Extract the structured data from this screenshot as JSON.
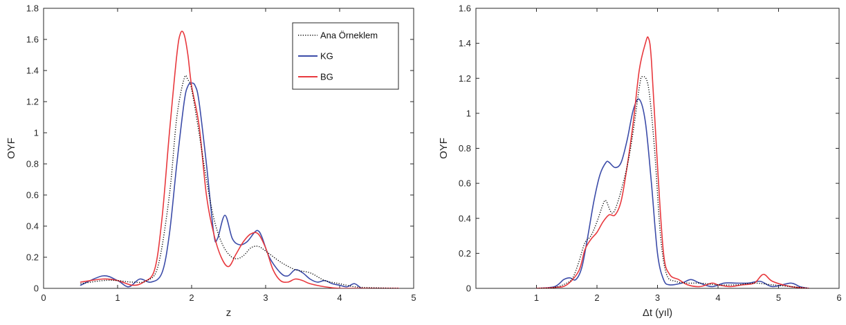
{
  "chart_data": [
    {
      "type": "line",
      "title": "",
      "xlabel": "z",
      "ylabel": "OYF",
      "xlim": [
        0,
        5
      ],
      "ylim": [
        0,
        1.8
      ],
      "x_ticks": [
        "0",
        "1",
        "2",
        "3",
        "4",
        "5"
      ],
      "y_ticks": [
        "0",
        "0.2",
        "0.4",
        "0.6",
        "0.8",
        "1",
        "1.2",
        "1.4",
        "1.6",
        "1.8"
      ],
      "grid": false,
      "legend_position": "top-right",
      "series": [
        {
          "name": "Ana Örneklem",
          "color": "#000000",
          "style": "dotted",
          "x": [
            0.5,
            0.8,
            1.0,
            1.2,
            1.4,
            1.55,
            1.7,
            1.8,
            1.9,
            1.95,
            2.0,
            2.1,
            2.2,
            2.3,
            2.4,
            2.5,
            2.6,
            2.7,
            2.8,
            2.9,
            3.0,
            3.2,
            3.4,
            3.6,
            3.8,
            4.0,
            4.2,
            4.4,
            4.6,
            4.8
          ],
          "y": [
            0.03,
            0.05,
            0.05,
            0.04,
            0.05,
            0.15,
            0.6,
            1.1,
            1.35,
            1.34,
            1.28,
            1.0,
            0.7,
            0.45,
            0.3,
            0.22,
            0.19,
            0.21,
            0.26,
            0.27,
            0.24,
            0.17,
            0.12,
            0.1,
            0.05,
            0.03,
            0.01,
            0.005,
            0.002,
            0.0
          ]
        },
        {
          "name": "KG",
          "color": "#3b4ba8",
          "style": "solid",
          "x": [
            0.5,
            0.8,
            1.0,
            1.15,
            1.3,
            1.45,
            1.6,
            1.7,
            1.8,
            1.9,
            1.95,
            2.0,
            2.05,
            2.1,
            2.2,
            2.3,
            2.35,
            2.45,
            2.55,
            2.65,
            2.75,
            2.85,
            2.9,
            2.95,
            3.05,
            3.2,
            3.3,
            3.4,
            3.5,
            3.6,
            3.7,
            3.8,
            3.9,
            4.0,
            4.1,
            4.2,
            4.3,
            4.4,
            4.6,
            4.8
          ],
          "y": [
            0.02,
            0.08,
            0.05,
            0.01,
            0.06,
            0.04,
            0.1,
            0.35,
            0.8,
            1.2,
            1.3,
            1.32,
            1.3,
            1.2,
            0.8,
            0.35,
            0.32,
            0.47,
            0.32,
            0.28,
            0.3,
            0.36,
            0.37,
            0.33,
            0.2,
            0.1,
            0.08,
            0.12,
            0.1,
            0.06,
            0.04,
            0.05,
            0.03,
            0.02,
            0.01,
            0.03,
            0.0,
            0.0,
            0.0,
            0.0
          ]
        },
        {
          "name": "BG",
          "color": "#e8383d",
          "style": "solid",
          "x": [
            0.5,
            0.8,
            1.0,
            1.2,
            1.35,
            1.5,
            1.6,
            1.7,
            1.8,
            1.85,
            1.9,
            1.95,
            2.0,
            2.1,
            2.2,
            2.3,
            2.4,
            2.5,
            2.6,
            2.7,
            2.8,
            2.9,
            3.0,
            3.1,
            3.2,
            3.3,
            3.4,
            3.5,
            3.6,
            3.8,
            4.0,
            4.2,
            4.4,
            4.6,
            4.8
          ],
          "y": [
            0.04,
            0.06,
            0.05,
            0.02,
            0.04,
            0.12,
            0.45,
            1.0,
            1.5,
            1.64,
            1.63,
            1.5,
            1.3,
            1.05,
            0.6,
            0.35,
            0.2,
            0.14,
            0.22,
            0.3,
            0.35,
            0.35,
            0.26,
            0.12,
            0.05,
            0.04,
            0.06,
            0.05,
            0.03,
            0.01,
            0.0,
            0.0,
            0.0,
            0.0,
            0.0
          ]
        }
      ]
    },
    {
      "type": "line",
      "title": "",
      "xlabel": "Δt (yıl)",
      "ylabel": "OYF",
      "xlim": [
        0,
        6
      ],
      "ylim": [
        0,
        1.6
      ],
      "x_ticks": [
        "1",
        "2",
        "3",
        "4",
        "5",
        "6"
      ],
      "y_ticks": [
        "0",
        "0.2",
        "0.4",
        "0.6",
        "0.8",
        "1",
        "1.2",
        "1.4",
        "1.6"
      ],
      "grid": false,
      "series": [
        {
          "name": "Ana Örneklem",
          "color": "#000000",
          "style": "dotted",
          "x": [
            1.0,
            1.3,
            1.5,
            1.6,
            1.7,
            1.8,
            1.9,
            2.0,
            2.1,
            2.15,
            2.25,
            2.35,
            2.5,
            2.6,
            2.7,
            2.75,
            2.85,
            2.95,
            3.05,
            3.15,
            3.3,
            3.5,
            3.7,
            4.0,
            4.3,
            4.6,
            4.9,
            5.2,
            5.5
          ],
          "y": [
            0.0,
            0.005,
            0.03,
            0.06,
            0.15,
            0.26,
            0.3,
            0.38,
            0.48,
            0.5,
            0.43,
            0.5,
            0.7,
            0.9,
            1.15,
            1.21,
            1.15,
            0.8,
            0.3,
            0.08,
            0.04,
            0.03,
            0.03,
            0.02,
            0.02,
            0.03,
            0.02,
            0.01,
            0.0
          ]
        },
        {
          "name": "KG",
          "color": "#3b4ba8",
          "style": "solid",
          "x": [
            1.0,
            1.3,
            1.45,
            1.55,
            1.65,
            1.75,
            1.85,
            1.95,
            2.05,
            2.15,
            2.2,
            2.3,
            2.4,
            2.5,
            2.6,
            2.7,
            2.8,
            2.9,
            3.0,
            3.1,
            3.2,
            3.4,
            3.55,
            3.7,
            3.9,
            4.1,
            4.3,
            4.5,
            4.7,
            4.9,
            5.2,
            5.35,
            5.5
          ],
          "y": [
            0.0,
            0.01,
            0.05,
            0.06,
            0.05,
            0.12,
            0.3,
            0.5,
            0.65,
            0.72,
            0.72,
            0.69,
            0.72,
            0.85,
            1.02,
            1.08,
            0.95,
            0.6,
            0.2,
            0.05,
            0.02,
            0.03,
            0.05,
            0.03,
            0.01,
            0.03,
            0.03,
            0.03,
            0.04,
            0.01,
            0.03,
            0.01,
            0.0
          ]
        },
        {
          "name": "BG",
          "color": "#e8383d",
          "style": "solid",
          "x": [
            1.0,
            1.3,
            1.5,
            1.7,
            1.8,
            1.9,
            2.0,
            2.1,
            2.2,
            2.3,
            2.4,
            2.5,
            2.6,
            2.7,
            2.8,
            2.85,
            2.9,
            3.0,
            3.1,
            3.2,
            3.35,
            3.5,
            3.7,
            3.9,
            4.0,
            4.2,
            4.4,
            4.6,
            4.75,
            4.9,
            5.2,
            5.5
          ],
          "y": [
            0.0,
            0.005,
            0.02,
            0.1,
            0.22,
            0.28,
            0.32,
            0.38,
            0.42,
            0.42,
            0.5,
            0.7,
            0.95,
            1.25,
            1.4,
            1.43,
            1.3,
            0.7,
            0.2,
            0.08,
            0.05,
            0.02,
            0.01,
            0.03,
            0.02,
            0.01,
            0.02,
            0.03,
            0.08,
            0.04,
            0.01,
            0.0
          ]
        }
      ]
    }
  ]
}
